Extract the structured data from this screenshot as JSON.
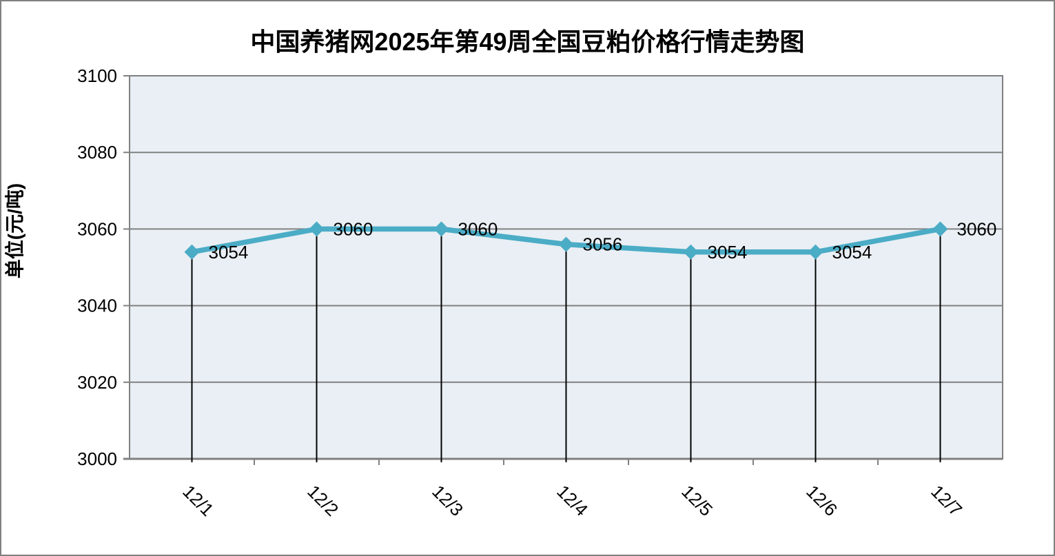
{
  "chart_data": {
    "type": "line",
    "title": "中国养猪网2025年第49周全国豆粕价格行情走势图",
    "ylabel": "单位(元/吨)",
    "xlabel": "",
    "categories": [
      "12/1",
      "12/2",
      "12/3",
      "12/4",
      "12/5",
      "12/6",
      "12/7"
    ],
    "values": [
      3054,
      3060,
      3060,
      3056,
      3054,
      3054,
      3060
    ],
    "data_labels": [
      "3054",
      "3060",
      "3060",
      "3056",
      "3054",
      "3054",
      "3060"
    ],
    "yticks": [
      3000,
      3020,
      3040,
      3060,
      3080,
      3100
    ],
    "ylim": [
      3000,
      3100
    ],
    "grid": true,
    "legend": false,
    "marker": "diamond",
    "colors": {
      "line": "#4BACC6",
      "marker": "#4BACC6",
      "plot_background": "#E9EFF4",
      "gridline": "#808080",
      "axis_line": "#808080",
      "drop_line": "#000000",
      "text": "#000000",
      "canvas_border": "#808080",
      "canvas_background": "#FFFFFF"
    }
  }
}
